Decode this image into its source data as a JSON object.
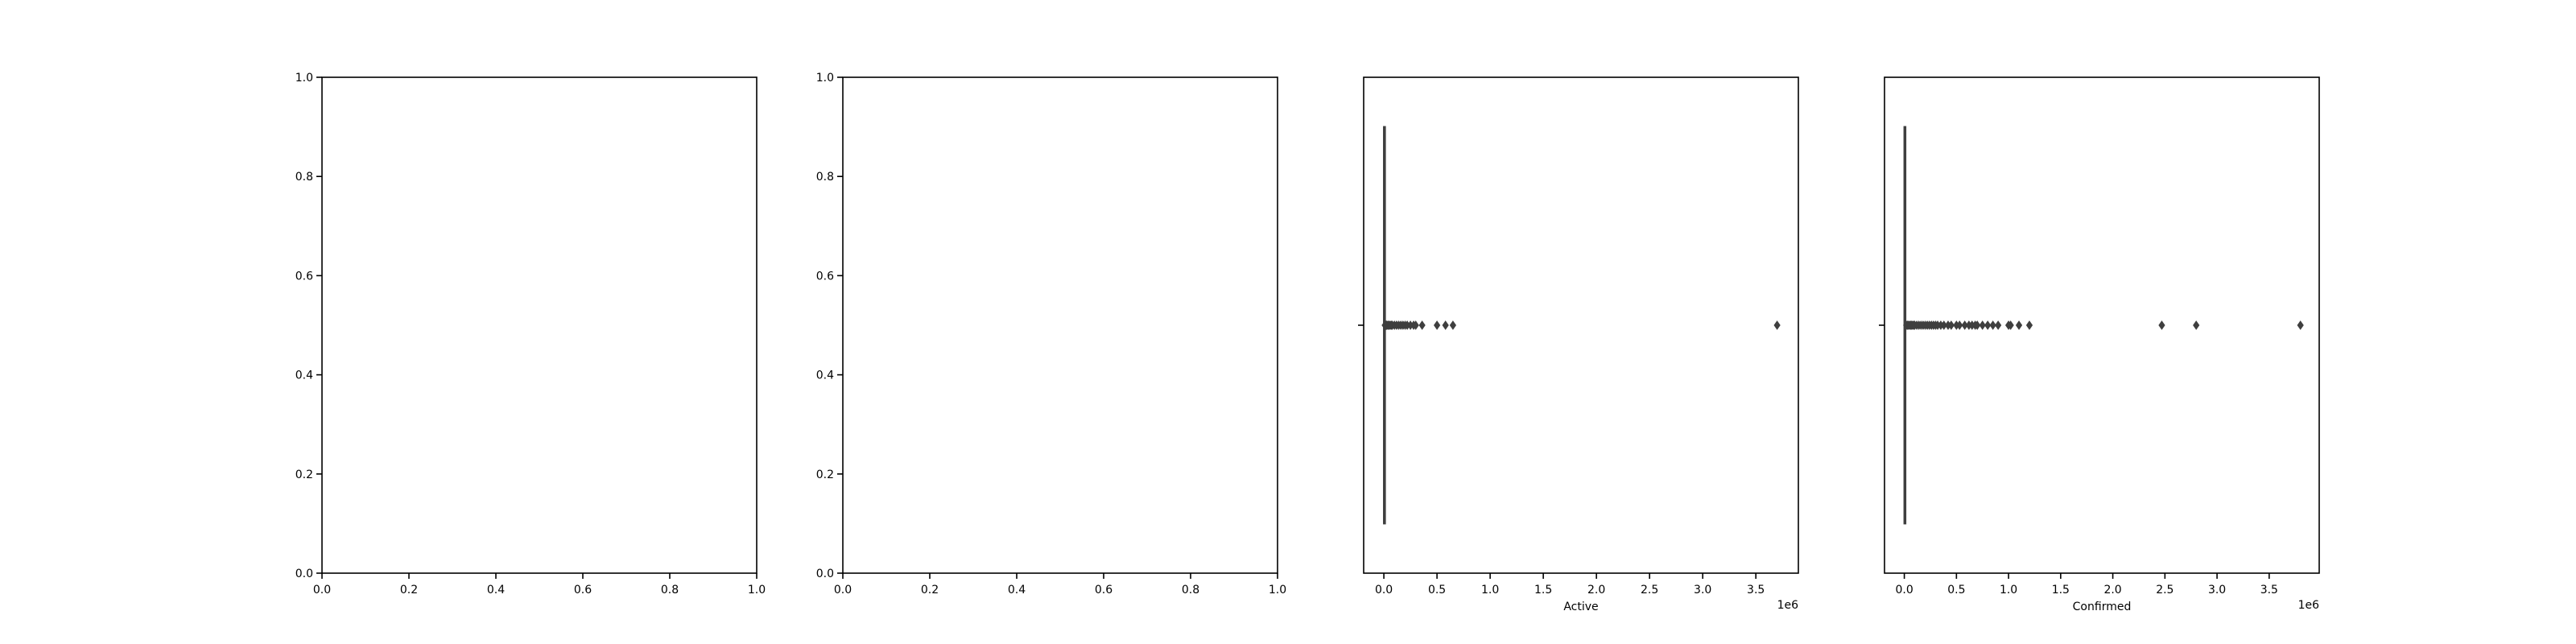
{
  "chart_data": [
    {
      "type": "empty",
      "xlabel": "",
      "ylabel": "",
      "xlim": [
        0,
        1
      ],
      "ylim": [
        0,
        1
      ],
      "xticks": [
        "0.0",
        "0.2",
        "0.4",
        "0.6",
        "0.8",
        "1.0"
      ],
      "yticks": [
        "0.0",
        "0.2",
        "0.4",
        "0.6",
        "0.8",
        "1.0"
      ]
    },
    {
      "type": "empty",
      "xlabel": "",
      "ylabel": "",
      "xlim": [
        0,
        1
      ],
      "ylim": [
        0,
        1
      ],
      "xticks": [
        "0.0",
        "0.2",
        "0.4",
        "0.6",
        "0.8",
        "1.0"
      ],
      "yticks": [
        "0.0",
        "0.2",
        "0.4",
        "0.6",
        "0.8",
        "1.0"
      ]
    },
    {
      "type": "boxplot",
      "orientation": "horizontal",
      "xlabel": "Active",
      "offset_label": "1e6",
      "xlim": [
        -0.19,
        3.9
      ],
      "xticks": [
        "0.0",
        "0.5",
        "1.0",
        "1.5",
        "2.0",
        "2.5",
        "3.0",
        "3.5"
      ],
      "box": {
        "min": 0,
        "q1": 0,
        "median": 0,
        "q3": 3000,
        "whisker_high": 8000
      },
      "outliers": [
        0.01,
        0.015,
        0.02,
        0.025,
        0.03,
        0.04,
        0.05,
        0.06,
        0.07,
        0.08,
        0.1,
        0.12,
        0.14,
        0.16,
        0.18,
        0.2,
        0.22,
        0.25,
        0.28,
        0.3,
        0.36,
        0.5,
        0.58,
        0.65,
        3.7
      ]
    },
    {
      "type": "boxplot",
      "orientation": "horizontal",
      "xlabel": "Confirmed",
      "offset_label": "1e6",
      "xlim": [
        -0.19,
        3.98
      ],
      "xticks": [
        "0.0",
        "0.5",
        "1.0",
        "1.5",
        "2.0",
        "2.5",
        "3.0",
        "3.5"
      ],
      "box": {
        "min": 0,
        "q1": 0,
        "median": 2000,
        "q3": 5000,
        "whisker_high": 12000
      },
      "outliers": [
        0.02,
        0.03,
        0.04,
        0.05,
        0.06,
        0.07,
        0.08,
        0.09,
        0.1,
        0.12,
        0.14,
        0.16,
        0.18,
        0.2,
        0.22,
        0.24,
        0.26,
        0.28,
        0.3,
        0.32,
        0.35,
        0.38,
        0.42,
        0.45,
        0.5,
        0.53,
        0.58,
        0.62,
        0.65,
        0.68,
        0.7,
        0.75,
        0.8,
        0.85,
        0.9,
        1.0,
        1.02,
        1.1,
        1.2,
        2.47,
        2.8,
        3.8
      ]
    }
  ]
}
